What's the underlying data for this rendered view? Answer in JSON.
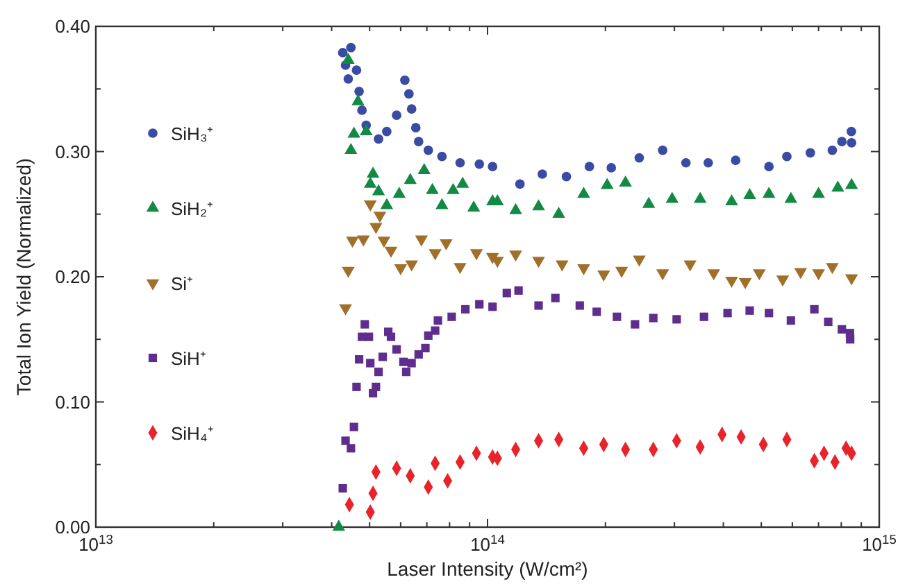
{
  "chart_data": {
    "type": "scatter",
    "xlabel": "Laser Intensity (W/cm²)",
    "ylabel": "Total Ion Yield (Normalized)",
    "log": "x",
    "legend": "left",
    "grid": false,
    "xlim": [
      10000000000000.0,
      1000000000000000.0
    ],
    "xticks": [
      {
        "value": 10000000000000.0,
        "label": "10$^{13}$"
      },
      {
        "value": 20000000000000.0,
        "label": null
      },
      {
        "value": 30000000000000.0,
        "label": null
      },
      {
        "value": 40000000000000.0,
        "label": null
      },
      {
        "value": 50000000000000.0,
        "label": null
      },
      {
        "value": 60000000000000.0,
        "label": null
      },
      {
        "value": 70000000000000.0,
        "label": null
      },
      {
        "value": 80000000000000.0,
        "label": null
      },
      {
        "value": 90000000000000.0,
        "label": null
      },
      {
        "value": 100000000000000.0,
        "label": "10$^{14}$"
      },
      {
        "value": 200000000000000.0,
        "label": null
      },
      {
        "value": 300000000000000.0,
        "label": null
      },
      {
        "value": 400000000000000.0,
        "label": null
      },
      {
        "value": 500000000000000.0,
        "label": null
      },
      {
        "value": 600000000000000.0,
        "label": null
      },
      {
        "value": 700000000000000.0,
        "label": null
      },
      {
        "value": 800000000000000.0,
        "label": null
      },
      {
        "value": 900000000000000.0,
        "label": null
      },
      {
        "value": 1000000000000000.0,
        "label": "10$^{15}$"
      }
    ],
    "ylim": [
      0,
      0.4
    ],
    "yticks": [
      {
        "value": 0,
        "label": "0.00"
      },
      {
        "value": 0.05,
        "label": null
      },
      {
        "value": 0.1,
        "label": "0.10"
      },
      {
        "value": 0.15,
        "label": null
      },
      {
        "value": 0.2,
        "label": "0.20"
      },
      {
        "value": 0.25,
        "label": null
      },
      {
        "value": 0.3,
        "label": "0.30"
      },
      {
        "value": 0.35,
        "label": null
      },
      {
        "value": 0.4,
        "label": "0.40"
      }
    ],
    "series": [
      {
        "name": "SiH₃⁺",
        "color": "#3a4ba3",
        "marker": "circle",
        "x": [
          42700000000000.0,
          44800000000000.0,
          43400000000000.0,
          46300000000000.0,
          44100000000000.0,
          47000000000000.0,
          47800000000000.0,
          49000000000000.0,
          52700000000000.0,
          55300000000000.0,
          58600000000000.0,
          61500000000000.0,
          63000000000000.0,
          64000000000000.0,
          65600000000000.0,
          66700000000000.0,
          70600000000000.0,
          76500000000000.0,
          85100000000000.0,
          95300000000000.0,
          103000000000000.0,
          121000000000000.0,
          138000000000000.0,
          159000000000000.0,
          182000000000000.0,
          207000000000000.0,
          244000000000000.0,
          280000000000000.0,
          321000000000000.0,
          366000000000000.0,
          430000000000000.0,
          523000000000000.0,
          581000000000000.0,
          667000000000000.0,
          759000000000000.0,
          803000000000000.0,
          850000000000000.0,
          849000000000000.0
        ],
        "values": [
          0.379,
          0.383,
          0.369,
          0.365,
          0.358,
          0.348,
          0.333,
          0.321,
          0.31,
          0.316,
          0.329,
          0.357,
          0.346,
          0.334,
          0.319,
          0.308,
          0.301,
          0.296,
          0.291,
          0.29,
          0.288,
          0.274,
          0.282,
          0.28,
          0.288,
          0.287,
          0.295,
          0.301,
          0.291,
          0.291,
          0.293,
          0.288,
          0.296,
          0.299,
          0.301,
          0.308,
          0.307,
          0.316
        ]
      },
      {
        "name": "SiH₂⁺",
        "color": "#138a44",
        "marker": "triangle",
        "x": [
          41700000000000.0,
          44100000000000.0,
          46700000000000.0,
          45600000000000.0,
          44800000000000.0,
          49000000000000.0,
          51000000000000.0,
          50200000000000.0,
          52700000000000.0,
          55300000000000.0,
          59500000000000.0,
          63500000000000.0,
          68900000000000.0,
          72300000000000.0,
          76500000000000.0,
          81700000000000.0,
          86400000000000.0,
          92200000000000.0,
          103000000000000.0,
          106000000000000.0,
          118000000000000.0,
          135000000000000.0,
          152000000000000.0,
          176000000000000.0,
          202000000000000.0,
          225000000000000.0,
          258000000000000.0,
          296000000000000.0,
          349000000000000.0,
          420000000000000.0,
          467000000000000.0,
          523000000000000.0,
          595000000000000.0,
          700000000000000.0,
          784000000000000.0,
          850000000000000.0
        ],
        "values": [
          0.0,
          0.373,
          0.34,
          0.314,
          0.301,
          0.316,
          0.282,
          0.274,
          0.268,
          0.257,
          0.266,
          0.277,
          0.285,
          0.269,
          0.257,
          0.269,
          0.274,
          0.255,
          0.26,
          0.26,
          0.253,
          0.256,
          0.25,
          0.266,
          0.273,
          0.275,
          0.258,
          0.262,
          0.262,
          0.26,
          0.265,
          0.266,
          0.262,
          0.266,
          0.271,
          0.273
        ]
      },
      {
        "name": "Si⁺",
        "color": "#a0702a",
        "marker": "triangle-down",
        "x": [
          43400000000000.0,
          44100000000000.0,
          45200000000000.0,
          48200000000000.0,
          50200000000000.0,
          51900000000000.0,
          53100000000000.0,
          54400000000000.0,
          56700000000000.0,
          60000000000000.0,
          64000000000000.0,
          67800000000000.0,
          73500000000000.0,
          78400000000000.0,
          85100000000000.0,
          93700000000000.0,
          103000000000000.0,
          106000000000000.0,
          118000000000000.0,
          135000000000000.0,
          155000000000000.0,
          176000000000000.0,
          198000000000000.0,
          220000000000000.0,
          244000000000000.0,
          280000000000000.0,
          329000000000000.0,
          378000000000000.0,
          420000000000000.0,
          455000000000000.0,
          494000000000000.0,
          567000000000000.0,
          630000000000000.0,
          700000000000000.0,
          759000000000000.0,
          850000000000000.0
        ],
        "values": [
          0.175,
          0.205,
          0.229,
          0.23,
          0.258,
          0.24,
          0.249,
          0.229,
          0.221,
          0.207,
          0.21,
          0.23,
          0.219,
          0.227,
          0.208,
          0.219,
          0.216,
          0.213,
          0.218,
          0.213,
          0.21,
          0.207,
          0.202,
          0.205,
          0.214,
          0.203,
          0.21,
          0.203,
          0.197,
          0.196,
          0.203,
          0.198,
          0.204,
          0.203,
          0.208,
          0.199
        ]
      },
      {
        "name": "SiH⁺",
        "color": "#5e2d8e",
        "marker": "square",
        "x": [
          42700000000000.0,
          43400000000000.0,
          44800000000000.0,
          45600000000000.0,
          46300000000000.0,
          47000000000000.0,
          47800000000000.0,
          48600000000000.0,
          49800000000000.0,
          50200000000000.0,
          51000000000000.0,
          51900000000000.0,
          52700000000000.0,
          54000000000000.0,
          55800000000000.0,
          56700000000000.0,
          58600000000000.0,
          61000000000000.0,
          62000000000000.0,
          64000000000000.0,
          66700000000000.0,
          69400000000000.0,
          70600000000000.0,
          73500000000000.0,
          74700000000000.0,
          81000000000000.0,
          87800000000000.0,
          95300000000000.0,
          103000000000000.0,
          112000000000000.0,
          120000000000000.0,
          135000000000000.0,
          149000000000000.0,
          172000000000000.0,
          190000000000000.0,
          214000000000000.0,
          238000000000000.0,
          265000000000000.0,
          304000000000000.0,
          357000000000000.0,
          410000000000000.0,
          467000000000000.0,
          523000000000000.0,
          595000000000000.0,
          683000000000000.0,
          741000000000000.0,
          803000000000000.0,
          843000000000000.0,
          842000000000000.0
        ],
        "values": [
          0.031,
          0.069,
          0.063,
          0.08,
          0.112,
          0.134,
          0.152,
          0.162,
          0.152,
          0.131,
          0.107,
          0.112,
          0.124,
          0.136,
          0.156,
          0.152,
          0.142,
          0.132,
          0.124,
          0.131,
          0.138,
          0.143,
          0.153,
          0.157,
          0.165,
          0.168,
          0.174,
          0.178,
          0.176,
          0.187,
          0.189,
          0.177,
          0.183,
          0.177,
          0.172,
          0.168,
          0.162,
          0.167,
          0.166,
          0.168,
          0.171,
          0.173,
          0.171,
          0.165,
          0.174,
          0.164,
          0.158,
          0.15,
          0.155
        ]
      },
      {
        "name": "SiH₄⁺",
        "color": "#e8242a",
        "marker": "diamond",
        "x": [
          44400000000000.0,
          50200000000000.0,
          51000000000000.0,
          51900000000000.0,
          58600000000000.0,
          63500000000000.0,
          70600000000000.0,
          73500000000000.0,
          79100000000000.0,
          85100000000000.0,
          93700000000000.0,
          103000000000000.0,
          106000000000000.0,
          118000000000000.0,
          135000000000000.0,
          152000000000000.0,
          176000000000000.0,
          198000000000000.0,
          225000000000000.0,
          265000000000000.0,
          304000000000000.0,
          349000000000000.0,
          397000000000000.0,
          444000000000000.0,
          506000000000000.0,
          581000000000000.0,
          683000000000000.0,
          723000000000000.0,
          771000000000000.0,
          823000000000000.0,
          850000000000000.0
        ],
        "values": [
          0.018,
          0.012,
          0.027,
          0.044,
          0.047,
          0.041,
          0.032,
          0.051,
          0.037,
          0.052,
          0.059,
          0.056,
          0.055,
          0.062,
          0.069,
          0.07,
          0.063,
          0.066,
          0.062,
          0.062,
          0.069,
          0.064,
          0.074,
          0.072,
          0.066,
          0.07,
          0.053,
          0.059,
          0.052,
          0.063,
          0.059
        ]
      }
    ]
  }
}
